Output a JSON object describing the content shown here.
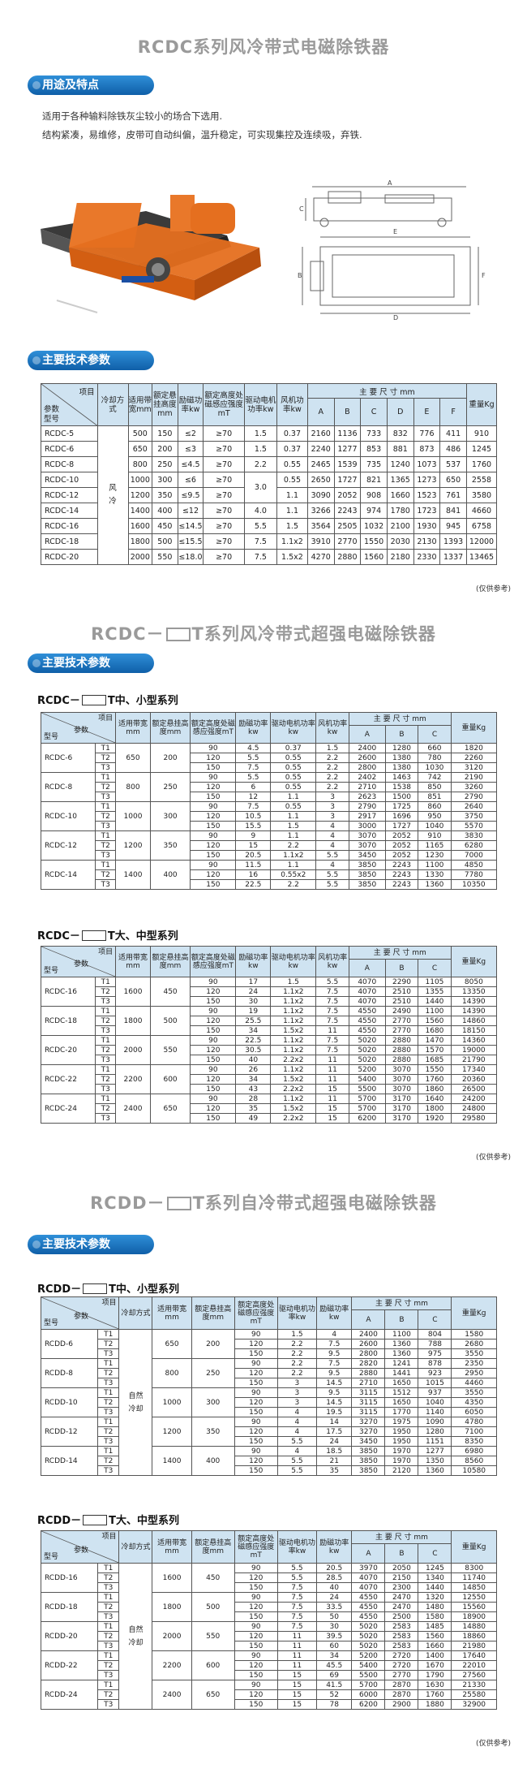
{
  "titles": {
    "t1": "RCDC系列风冷带式电磁除铁器",
    "t2_pre": "RCDC－",
    "t2_post": "T系列风冷带式超强电磁除铁器",
    "t3_pre": "RCDD－",
    "t3_post": "T系列自冷带式超强电磁除铁器"
  },
  "banners": {
    "usage": "用途及特点",
    "spec": "主要技术参数"
  },
  "intro": {
    "line1": "适用于各种输料除铁灰尘较小的场合下选用.",
    "line2": "结构紧凑，易维修，皮带可自动纠偏，温升稳定，可实现集控及连续吸，弃铁."
  },
  "diagram_labels": [
    "A",
    "B",
    "C",
    "D",
    "E",
    "F"
  ],
  "table1": {
    "h_item": "项目",
    "h_model": "型号",
    "h_param": "参数",
    "headers": [
      "冷却方式",
      "适用带宽mm",
      "额定悬挂高度mm",
      "励磁功率kw",
      "额定高度处磁感应强度mT",
      "驱动电机功率kw",
      "风机功率kw"
    ],
    "h_dims": "主 要 尺 寸 mm",
    "dims": [
      "A",
      "B",
      "C",
      "D",
      "E",
      "F"
    ],
    "h_weight": "重量Kg",
    "cooling": "风冷",
    "rows": [
      [
        "RCDC-5",
        "500",
        "150",
        "≤2",
        "≥70",
        "1.5",
        "0.37",
        "2160",
        "1136",
        "733",
        "832",
        "776",
        "411",
        "910"
      ],
      [
        "RCDC-6",
        "650",
        "200",
        "≤3",
        "≥70",
        "1.5",
        "0.37",
        "2240",
        "1277",
        "853",
        "881",
        "873",
        "486",
        "1245"
      ],
      [
        "RCDC-8",
        "800",
        "250",
        "≤4.5",
        "≥70",
        "2.2",
        "0.55",
        "2465",
        "1539",
        "735",
        "1240",
        "1073",
        "537",
        "1760"
      ],
      [
        "RCDC-10",
        "1000",
        "300",
        "≤6",
        "≥70",
        "3.0",
        "0.55",
        "2650",
        "1727",
        "821",
        "1365",
        "1273",
        "650",
        "2558"
      ],
      [
        "RCDC-12",
        "1200",
        "350",
        "≤9.5",
        "≥70",
        "",
        "1.1",
        "3090",
        "2052",
        "908",
        "1660",
        "1523",
        "761",
        "3580"
      ],
      [
        "RCDC-14",
        "1400",
        "400",
        "≤12",
        "≥70",
        "4.0",
        "1.1",
        "3266",
        "2243",
        "974",
        "1780",
        "1723",
        "841",
        "4660"
      ],
      [
        "RCDC-16",
        "1600",
        "450",
        "≤14.5",
        "≥70",
        "5.5",
        "1.5",
        "3564",
        "2505",
        "1032",
        "2100",
        "1930",
        "945",
        "6758"
      ],
      [
        "RCDC-18",
        "1800",
        "500",
        "≤15.5",
        "≥70",
        "7.5",
        "1.1x2",
        "3910",
        "2770",
        "1550",
        "2030",
        "2130",
        "1393",
        "12000"
      ],
      [
        "RCDC-20",
        "2000",
        "550",
        "≤18.0",
        "≥70",
        "7.5",
        "1.5x2",
        "4270",
        "2880",
        "1560",
        "2180",
        "2330",
        "1337",
        "13465"
      ]
    ],
    "note": "(仅供参考)"
  },
  "table2": {
    "subtitle_pre": "RCDC－",
    "subtitle_post": "T中、小型系列",
    "h_item": "项目",
    "h_model": "型号",
    "h_param": "参数",
    "headers": [
      "适用带宽mm",
      "额定悬挂高度mm",
      "额定高度处磁感应强度mT",
      "励磁功率kw",
      "驱动电机功率kw",
      "风机功率kw"
    ],
    "h_dims": "主 要 尺 寸 mm",
    "dims": [
      "A",
      "B",
      "C"
    ],
    "h_weight": "重量Kg",
    "groups": [
      {
        "model": "RCDC-6",
        "width": "650",
        "height": "200",
        "rows": [
          [
            "T1",
            "90",
            "4.5",
            "0.37",
            "1.5",
            "2400",
            "1280",
            "660",
            "1820"
          ],
          [
            "T2",
            "120",
            "5.5",
            "0.55",
            "2.2",
            "2600",
            "1380",
            "780",
            "2260"
          ],
          [
            "T3",
            "150",
            "7.5",
            "0.55",
            "2.2",
            "2800",
            "1380",
            "1030",
            "3120"
          ]
        ]
      },
      {
        "model": "RCDC-8",
        "width": "800",
        "height": "250",
        "rows": [
          [
            "T1",
            "90",
            "5.5",
            "0.55",
            "2.2",
            "2402",
            "1463",
            "742",
            "2190"
          ],
          [
            "T2",
            "120",
            "6",
            "0.55",
            "2.2",
            "2710",
            "1538",
            "850",
            "3260"
          ],
          [
            "T3",
            "150",
            "12",
            "1.1",
            "3",
            "2623",
            "1500",
            "851",
            "2790"
          ]
        ]
      },
      {
        "model": "RCDC-10",
        "width": "1000",
        "height": "300",
        "rows": [
          [
            "T1",
            "90",
            "7.5",
            "0.55",
            "3",
            "2790",
            "1725",
            "860",
            "2640"
          ],
          [
            "T2",
            "120",
            "10.5",
            "1.1",
            "3",
            "2917",
            "1696",
            "950",
            "3750"
          ],
          [
            "T3",
            "150",
            "15.5",
            "1.5",
            "4",
            "3000",
            "1727",
            "1040",
            "5570"
          ]
        ]
      },
      {
        "model": "RCDC-12",
        "width": "1200",
        "height": "350",
        "rows": [
          [
            "T1",
            "90",
            "9",
            "1.1",
            "4",
            "3070",
            "2052",
            "910",
            "3830"
          ],
          [
            "T2",
            "120",
            "15",
            "2.2",
            "4",
            "3070",
            "2052",
            "1165",
            "6280"
          ],
          [
            "T3",
            "150",
            "20.5",
            "1.1x2",
            "5.5",
            "3450",
            "2052",
            "1230",
            "7000"
          ]
        ]
      },
      {
        "model": "RCDC-14",
        "width": "1400",
        "height": "400",
        "rows": [
          [
            "T1",
            "90",
            "11.5",
            "1.1",
            "4",
            "3850",
            "2243",
            "1100",
            "4850"
          ],
          [
            "T2",
            "120",
            "16",
            "0.55x2",
            "5.5",
            "3850",
            "2243",
            "1330",
            "7780"
          ],
          [
            "T3",
            "150",
            "22.5",
            "2.2",
            "5.5",
            "3850",
            "2243",
            "1360",
            "10350"
          ]
        ]
      }
    ]
  },
  "table3": {
    "subtitle_pre": "RCDC－",
    "subtitle_post": "T大、中型系列",
    "groups": [
      {
        "model": "RCDC-16",
        "width": "1600",
        "height": "450",
        "rows": [
          [
            "T1",
            "90",
            "17",
            "1.5",
            "5.5",
            "4070",
            "2290",
            "1105",
            "8050"
          ],
          [
            "T2",
            "120",
            "24",
            "1.1x2",
            "7.5",
            "4070",
            "2510",
            "1355",
            "13350"
          ],
          [
            "T3",
            "150",
            "30",
            "1.1x2",
            "7.5",
            "4070",
            "2510",
            "1440",
            "14390"
          ]
        ]
      },
      {
        "model": "RCDC-18",
        "width": "1800",
        "height": "500",
        "rows": [
          [
            "T1",
            "90",
            "19",
            "1.1x2",
            "7.5",
            "4550",
            "2490",
            "1100",
            "14390"
          ],
          [
            "T2",
            "120",
            "25.5",
            "1.1x2",
            "7.5",
            "4550",
            "2770",
            "1560",
            "14860"
          ],
          [
            "T3",
            "150",
            "34",
            "1.5x2",
            "11",
            "4550",
            "2770",
            "1680",
            "18150"
          ]
        ]
      },
      {
        "model": "RCDC-20",
        "width": "2000",
        "height": "550",
        "rows": [
          [
            "T1",
            "90",
            "22.5",
            "1.1x2",
            "7.5",
            "5020",
            "2880",
            "1470",
            "14360"
          ],
          [
            "T2",
            "120",
            "30.5",
            "1.1x2",
            "7.5",
            "5020",
            "2880",
            "1570",
            "19000"
          ],
          [
            "T3",
            "150",
            "40",
            "2.2x2",
            "11",
            "5020",
            "2880",
            "1685",
            "21790"
          ]
        ]
      },
      {
        "model": "RCDC-22",
        "width": "2200",
        "height": "600",
        "rows": [
          [
            "T1",
            "90",
            "26",
            "1.1x2",
            "11",
            "5200",
            "3070",
            "1550",
            "17340"
          ],
          [
            "T2",
            "120",
            "34",
            "1.5x2",
            "11",
            "5400",
            "3070",
            "1760",
            "20360"
          ],
          [
            "T3",
            "150",
            "43",
            "2.2x2",
            "15",
            "5500",
            "3070",
            "1860",
            "26500"
          ]
        ]
      },
      {
        "model": "RCDC-24",
        "width": "2400",
        "height": "650",
        "rows": [
          [
            "T1",
            "90",
            "28",
            "1.1x2",
            "11",
            "5700",
            "3170",
            "1640",
            "24200"
          ],
          [
            "T2",
            "120",
            "35",
            "1.5x2",
            "15",
            "5700",
            "3170",
            "1800",
            "24800"
          ],
          [
            "T3",
            "150",
            "49",
            "2.2x2",
            "15",
            "6200",
            "3170",
            "1920",
            "29580"
          ]
        ]
      }
    ],
    "note": "(仅供参考)"
  },
  "table4": {
    "subtitle_pre": "RCDD－",
    "subtitle_post": "T中、小型系列",
    "headers": [
      "冷却方式",
      "适用带宽mm",
      "额定悬挂高度mm",
      "额定高度处磁感应强度mT",
      "驱动电机功率kw",
      "励磁功率kw"
    ],
    "cooling": "自然冷却",
    "groups": [
      {
        "model": "RCDD-6",
        "width": "650",
        "height": "200",
        "rows": [
          [
            "T1",
            "90",
            "1.5",
            "4",
            "2400",
            "1100",
            "804",
            "1580"
          ],
          [
            "T2",
            "120",
            "2.2",
            "7.5",
            "2600",
            "1360",
            "788",
            "2680"
          ],
          [
            "T3",
            "150",
            "2.2",
            "9.5",
            "2800",
            "1360",
            "975",
            "3550"
          ]
        ]
      },
      {
        "model": "RCDD-8",
        "width": "800",
        "height": "250",
        "rows": [
          [
            "T1",
            "90",
            "2.2",
            "7.5",
            "2820",
            "1241",
            "878",
            "2350"
          ],
          [
            "T2",
            "120",
            "2.2",
            "9.5",
            "2880",
            "1441",
            "923",
            "2950"
          ],
          [
            "T3",
            "150",
            "3",
            "14.5",
            "2710",
            "1650",
            "1015",
            "4460"
          ]
        ]
      },
      {
        "model": "RCDD-10",
        "width": "1000",
        "height": "300",
        "rows": [
          [
            "T1",
            "90",
            "3",
            "9.5",
            "3115",
            "1512",
            "937",
            "3550"
          ],
          [
            "T2",
            "120",
            "3",
            "14.5",
            "3115",
            "1650",
            "1040",
            "4350"
          ],
          [
            "T3",
            "150",
            "4",
            "19.5",
            "3115",
            "1770",
            "1140",
            "6050"
          ]
        ]
      },
      {
        "model": "RCDD-12",
        "width": "1200",
        "height": "350",
        "rows": [
          [
            "T1",
            "90",
            "4",
            "14",
            "3270",
            "1975",
            "1090",
            "4780"
          ],
          [
            "T2",
            "120",
            "4",
            "17.5",
            "3270",
            "1950",
            "1280",
            "7100"
          ],
          [
            "T3",
            "150",
            "5.5",
            "24",
            "3450",
            "1950",
            "1151",
            "8350"
          ]
        ]
      },
      {
        "model": "RCDD-14",
        "width": "1400",
        "height": "400",
        "rows": [
          [
            "T1",
            "90",
            "4",
            "18.5",
            "3850",
            "1970",
            "1277",
            "6980"
          ],
          [
            "T2",
            "120",
            "5.5",
            "21",
            "3850",
            "1970",
            "1350",
            "8560"
          ],
          [
            "T3",
            "150",
            "5.5",
            "35",
            "3850",
            "2120",
            "1360",
            "10580"
          ]
        ]
      }
    ]
  },
  "table5": {
    "subtitle_pre": "RCDD－",
    "subtitle_post": "T大、中型系列",
    "groups": [
      {
        "model": "RCDD-16",
        "width": "1600",
        "height": "450",
        "rows": [
          [
            "T1",
            "90",
            "5.5",
            "20.5",
            "3970",
            "2050",
            "1245",
            "8300"
          ],
          [
            "T2",
            "120",
            "5.5",
            "28.5",
            "4070",
            "2150",
            "1340",
            "11740"
          ],
          [
            "T3",
            "150",
            "7.5",
            "40",
            "4070",
            "2300",
            "1440",
            "14850"
          ]
        ]
      },
      {
        "model": "RCDD-18",
        "width": "1800",
        "height": "500",
        "rows": [
          [
            "T1",
            "90",
            "7.5",
            "24",
            "4550",
            "2470",
            "1320",
            "12550"
          ],
          [
            "T2",
            "120",
            "7.5",
            "33.5",
            "4550",
            "2470",
            "1480",
            "15560"
          ],
          [
            "T3",
            "150",
            "7.5",
            "50",
            "4550",
            "2500",
            "1580",
            "18900"
          ]
        ]
      },
      {
        "model": "RCDD-20",
        "width": "2000",
        "height": "550",
        "rows": [
          [
            "T1",
            "90",
            "7.5",
            "30",
            "5020",
            "2583",
            "1485",
            "14880"
          ],
          [
            "T2",
            "120",
            "11",
            "39.5",
            "5020",
            "2583",
            "1560",
            "18860"
          ],
          [
            "T3",
            "150",
            "11",
            "60",
            "5020",
            "2583",
            "1660",
            "21980"
          ]
        ]
      },
      {
        "model": "RCDD-22",
        "width": "2200",
        "height": "600",
        "rows": [
          [
            "T1",
            "90",
            "11",
            "34",
            "5200",
            "2720",
            "1400",
            "17640"
          ],
          [
            "T2",
            "120",
            "11",
            "45.5",
            "5400",
            "2720",
            "1670",
            "22010"
          ],
          [
            "T3",
            "150",
            "15",
            "69",
            "5500",
            "2770",
            "1790",
            "27560"
          ]
        ]
      },
      {
        "model": "RCDD-24",
        "width": "2400",
        "height": "650",
        "rows": [
          [
            "T1",
            "90",
            "15",
            "41.5",
            "5700",
            "2870",
            "1630",
            "21330"
          ],
          [
            "T2",
            "120",
            "15",
            "52",
            "6000",
            "2870",
            "1760",
            "25580"
          ],
          [
            "T3",
            "150",
            "15",
            "78",
            "6200",
            "2900",
            "1880",
            "32900"
          ]
        ]
      }
    ],
    "note": "(仅供参考)"
  }
}
